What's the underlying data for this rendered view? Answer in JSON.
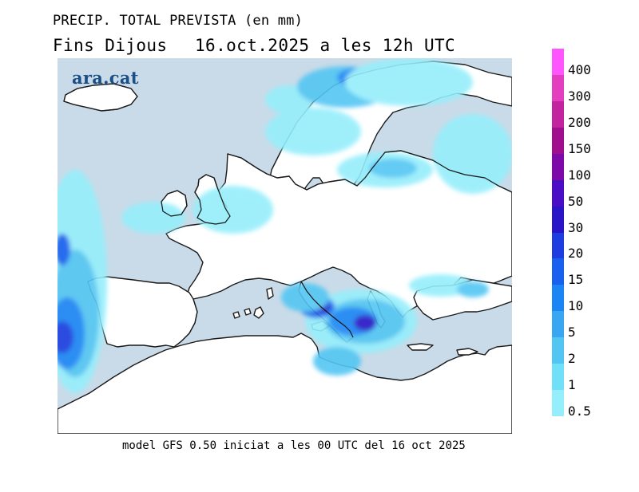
{
  "title": {
    "line1": "PRECIP. TOTAL PREVISTA (en mm)",
    "line2_prefix": "Fins Dijous",
    "line2_datetime": "16.oct.2025 a les 12h UTC"
  },
  "brand": "ara.cat",
  "caption": "model GFS 0.50 iniciat a les 00 UTC del 16 oct 2025",
  "map": {
    "region": "Europe and Mediterranean",
    "colors": {
      "sea": "#c9dbe8",
      "land": "#ffffff",
      "coast": "#1a1a1a"
    }
  },
  "legend": {
    "unit": "mm",
    "labels": [
      "400",
      "300",
      "200",
      "150",
      "100",
      "50",
      "30",
      "20",
      "15",
      "10",
      "5",
      "2",
      "1",
      "0.5"
    ],
    "colors": [
      "#ff55ff",
      "#e43ec0",
      "#c2249f",
      "#a10e8d",
      "#7d0aa8",
      "#4a0cc4",
      "#2a14c8",
      "#1d3de0",
      "#1860ee",
      "#1a86f5",
      "#39a6f2",
      "#52c6f3",
      "#6fe0f8",
      "#95eefb"
    ]
  }
}
